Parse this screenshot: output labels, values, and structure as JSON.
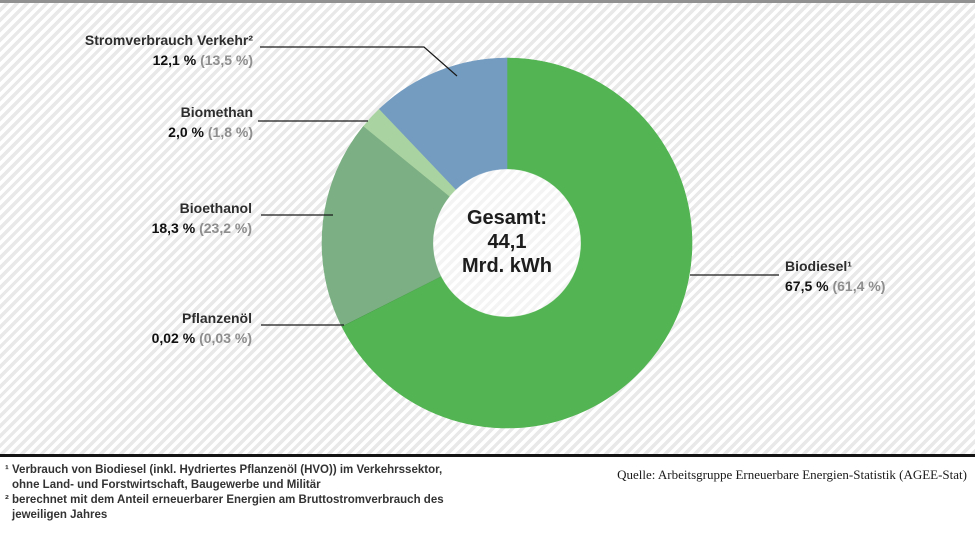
{
  "chart_data": {
    "type": "pie",
    "subtype": "donut",
    "direction": "clockwise",
    "start_angle_deg": 0,
    "title_center": "Gesamt: 44,1 Mrd. kWh",
    "center_label": {
      "line1": "Gesamt:",
      "line2": "44,1",
      "line3": "Mrd. kWh"
    },
    "unit": "Mrd. kWh",
    "total_value": "44,1",
    "slices": [
      {
        "name": "Biodiesel¹",
        "value": 67.5,
        "value_label": "67,5 %",
        "prev_label": "(61,4 %)",
        "color": "#52b452"
      },
      {
        "name": "Pflanzenöl",
        "value": 0.02,
        "value_label": "0,02 %",
        "prev_label": "(0,03 %)",
        "color": "#3a8f3a"
      },
      {
        "name": "Bioethanol",
        "value": 18.3,
        "value_label": "18,3 %",
        "prev_label": "(23,2 %)",
        "color": "#7caf83"
      },
      {
        "name": "Biomethan",
        "value": 2.0,
        "value_label": "2,0 %",
        "prev_label": "(1,8 %)",
        "color": "#aad3a2"
      },
      {
        "name": "Stromverbrauch Verkehr²",
        "value": 12.1,
        "value_label": "12,1 %",
        "prev_label": "(13,5 %)",
        "color": "#749cc1"
      }
    ]
  },
  "footnotes": {
    "line1": "¹ Verbrauch von Biodiesel (inkl. Hydriertes Pflanzenöl (HVO)) im Verkehrssektor,",
    "line2": "ohne Land- und Forstwirtschaft, Baugewerbe und Militär",
    "line3": "² berechnet mit dem Anteil erneuerbarer Energien am Bruttostromverbrauch des",
    "line4": "jeweiligen Jahres"
  },
  "source": "Quelle: Arbeitsgruppe Erneuerbare Energien-Statistik (AGEE-Stat)"
}
